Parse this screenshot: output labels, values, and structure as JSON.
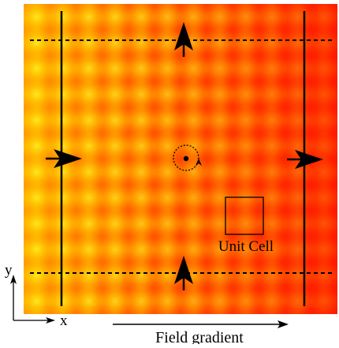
{
  "labels": {
    "unit_cell": "Unit Cell",
    "field_gradient": "Field gradient",
    "axis_x": "x",
    "axis_y": "y"
  },
  "colors": {
    "bright": "#ffe800",
    "hot": "#ff1d00",
    "ink": "#000000"
  },
  "lattice": {
    "columns": 12,
    "rows": 12
  }
}
